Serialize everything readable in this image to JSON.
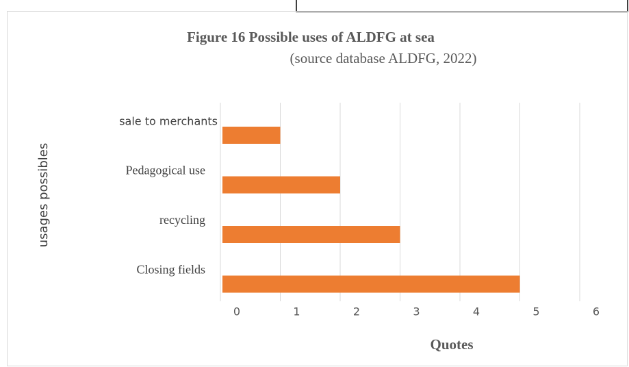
{
  "chart_data": {
    "type": "bar",
    "orientation": "horizontal",
    "title": "Figure 16 Possible uses of ALDFG at sea",
    "subtitle": "(source database ALDFG, 2022)",
    "categories": [
      "sale to merchants",
      "Pedagogical use",
      "recycling",
      "Closing fields"
    ],
    "values": [
      1,
      2,
      3,
      5
    ],
    "color": "#ed7d31",
    "xlim": [
      0,
      6
    ],
    "xticks": [
      0,
      1,
      2,
      3,
      4,
      5,
      6
    ],
    "xlabel": "Quotes",
    "ylabel": "usages possibles",
    "grid": true
  }
}
